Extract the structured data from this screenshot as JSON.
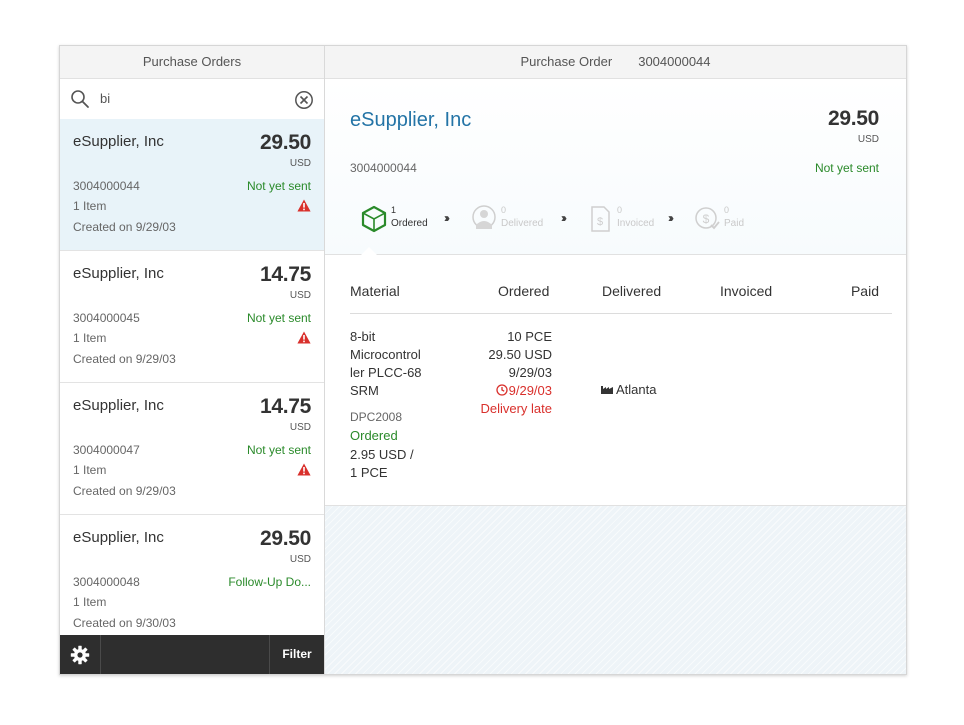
{
  "master": {
    "title": "Purchase Orders",
    "search": {
      "value": "bi",
      "placeholder": ""
    },
    "items": [
      {
        "name": "eSupplier, Inc",
        "amount": "29.50",
        "currency": "USD",
        "number": "3004000044",
        "status": "Not yet sent",
        "count": "1 Item",
        "created": "Created on 9/29/03",
        "warning": true
      },
      {
        "name": "eSupplier, Inc",
        "amount": "14.75",
        "currency": "USD",
        "number": "3004000045",
        "status": "Not yet sent",
        "count": "1 Item",
        "created": "Created on 9/29/03",
        "warning": true
      },
      {
        "name": "eSupplier, Inc",
        "amount": "14.75",
        "currency": "USD",
        "number": "3004000047",
        "status": "Not yet sent",
        "count": "1 Item",
        "created": "Created on 9/29/03",
        "warning": true
      },
      {
        "name": "eSupplier, Inc",
        "amount": "29.50",
        "currency": "USD",
        "number": "3004000048",
        "status": "Follow-Up Do...",
        "count": "1 Item",
        "created": "Created on 9/30/03",
        "warning": false
      }
    ],
    "footer": {
      "filter_label": "Filter"
    }
  },
  "detail": {
    "header_title": "Purchase Order",
    "header_number": "3004000044",
    "object": {
      "title": "eSupplier, Inc",
      "number": "3004000044",
      "amount": "29.50",
      "currency": "USD",
      "status": "Not yet sent"
    },
    "process": [
      {
        "count": "1",
        "label": "Ordered"
      },
      {
        "count": "0",
        "label": "Delivered"
      },
      {
        "count": "0",
        "label": "Invoiced"
      },
      {
        "count": "0",
        "label": "Paid"
      }
    ],
    "table": {
      "columns": [
        "Material",
        "Ordered",
        "Delivered",
        "Invoiced",
        "Paid"
      ],
      "row": {
        "material_lines": [
          "8-bit",
          "Microcontrol",
          "ler PLCC-68",
          "SRM"
        ],
        "material_code": "DPC2008",
        "material_status": "Ordered",
        "price_lines": [
          "2.95 USD /",
          "1 PCE"
        ],
        "ordered_qty": "10 PCE",
        "ordered_amount": "29.50 USD",
        "ordered_date": "9/29/03",
        "delivery_date": "9/29/03",
        "delivery_note": "Delivery late",
        "delivered_location": "Atlanta"
      }
    }
  },
  "colors": {
    "accent": "#2474a6",
    "positive": "#2a8a2a",
    "negative": "#d9302c",
    "selected_bg": "#e8f3f9"
  }
}
